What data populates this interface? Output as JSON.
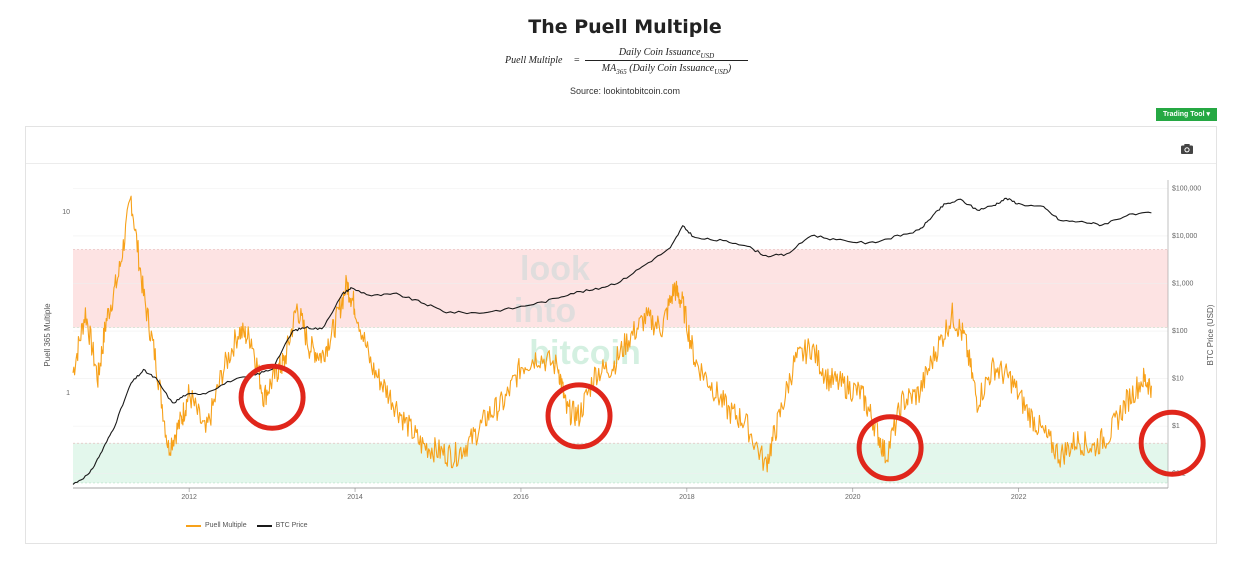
{
  "page": {
    "title": "The Puell Multiple",
    "formula": {
      "lhs": "Puell Multiple",
      "eq": "=",
      "numerator": "Daily Coin Issuance",
      "numerator_sub": "USD",
      "denominator_pre": "MA",
      "denominator_pre_sub": "365",
      "denominator": " (Daily Coin Issuance",
      "denominator_sub": "USD",
      "denominator_post": ")"
    },
    "source": "Source: lookintobitcoin.com",
    "trading_tool_label": "Trading Tool ▾"
  },
  "colors": {
    "puell": "#f7a11a",
    "btc": "#1a1a1a",
    "red_band": "#fde3e3",
    "green_band": "#e3f7ec",
    "circle": "#e0261b",
    "watermark": "#dcdcdc"
  },
  "watermark": {
    "line1": "look",
    "line2": "into",
    "line3": "bitcoin"
  },
  "icons": {
    "camera": "camera-icon"
  },
  "chart_data": {
    "type": "line",
    "xlabel": "",
    "ylabel_left": "Puell 365 Multiple",
    "ylabel_right": "BTC Price (USD)",
    "x_ticks": [
      "2012",
      "2014",
      "2016",
      "2018",
      "2020",
      "2022"
    ],
    "x_range": [
      2010.6,
      2023.8
    ],
    "y_left_scale": "log",
    "y_left_range": [
      0.3,
      15
    ],
    "y_left_ticks": [
      "10",
      "1"
    ],
    "y_right_scale": "log",
    "y_right_range": [
      0.05,
      150000
    ],
    "y_right_ticks": [
      "$100,000",
      "$10,000",
      "$1,000",
      "$100",
      "$10",
      "$1",
      "$0.1"
    ],
    "bands": [
      {
        "name": "overvalued",
        "from": 2.3,
        "to": 6.2,
        "axis": "left"
      },
      {
        "name": "undervalued",
        "from": 0.32,
        "to": 0.53,
        "axis": "left"
      }
    ],
    "legend_placement": "bottom-left",
    "series": [
      {
        "name": "Puell Multiple",
        "axis": "left",
        "x": [
          2010.6,
          2010.75,
          2010.9,
          2011.0,
          2011.15,
          2011.3,
          2011.45,
          2011.6,
          2011.75,
          2011.9,
          2012.0,
          2012.2,
          2012.4,
          2012.6,
          2012.75,
          2012.9,
          2013.05,
          2013.15,
          2013.3,
          2013.45,
          2013.6,
          2013.75,
          2013.9,
          2014.0,
          2014.2,
          2014.4,
          2014.6,
          2014.8,
          2015.0,
          2015.2,
          2015.4,
          2015.6,
          2015.8,
          2016.0,
          2016.2,
          2016.45,
          2016.55,
          2016.7,
          2016.9,
          2017.1,
          2017.3,
          2017.5,
          2017.7,
          2017.85,
          2017.95,
          2018.1,
          2018.3,
          2018.5,
          2018.7,
          2018.95,
          2019.1,
          2019.3,
          2019.5,
          2019.7,
          2019.9,
          2020.1,
          2020.25,
          2020.4,
          2020.6,
          2020.8,
          2021.0,
          2021.2,
          2021.35,
          2021.5,
          2021.7,
          2021.9,
          2022.1,
          2022.3,
          2022.5,
          2022.7,
          2022.9,
          2023.1,
          2023.3,
          2023.5,
          2023.6
        ],
        "values": [
          1.3,
          2.8,
          1.2,
          2.5,
          4.5,
          12.0,
          3.5,
          1.5,
          0.5,
          0.7,
          1.0,
          0.6,
          1.3,
          2.2,
          2.0,
          0.95,
          1.3,
          1.5,
          3.0,
          1.8,
          1.6,
          2.3,
          4.0,
          3.0,
          1.4,
          1.0,
          0.7,
          0.52,
          0.48,
          0.45,
          0.55,
          0.75,
          0.9,
          1.4,
          1.6,
          1.4,
          0.8,
          0.75,
          1.3,
          1.4,
          2.0,
          2.6,
          2.3,
          3.8,
          3.1,
          1.5,
          1.1,
          0.8,
          0.7,
          0.4,
          0.7,
          1.5,
          1.8,
          1.2,
          1.1,
          1.0,
          0.7,
          0.45,
          0.9,
          1.0,
          1.7,
          2.7,
          2.0,
          0.9,
          1.4,
          1.2,
          0.8,
          0.6,
          0.45,
          0.55,
          0.5,
          0.6,
          0.9,
          1.2,
          1.1
        ]
      },
      {
        "name": "BTC Price",
        "axis": "right",
        "x": [
          2010.6,
          2010.8,
          2010.95,
          2011.1,
          2011.3,
          2011.45,
          2011.6,
          2011.8,
          2011.95,
          2012.2,
          2012.5,
          2012.8,
          2013.0,
          2013.25,
          2013.4,
          2013.6,
          2013.85,
          2013.95,
          2014.2,
          2014.5,
          2014.8,
          2015.1,
          2015.5,
          2015.9,
          2016.3,
          2016.6,
          2016.9,
          2017.2,
          2017.5,
          2017.8,
          2017.95,
          2018.1,
          2018.4,
          2018.7,
          2018.95,
          2019.2,
          2019.5,
          2019.8,
          2020.2,
          2020.5,
          2020.8,
          2020.95,
          2021.1,
          2021.3,
          2021.5,
          2021.7,
          2021.85,
          2022.0,
          2022.3,
          2022.5,
          2022.8,
          2023.0,
          2023.3,
          2023.6
        ],
        "values": [
          0.06,
          0.1,
          0.3,
          1.0,
          8.0,
          15.0,
          10.0,
          3.0,
          4.5,
          5.0,
          9.0,
          12.0,
          16.0,
          100.0,
          120.0,
          110.0,
          600.0,
          800.0,
          550.0,
          600.0,
          400.0,
          250.0,
          240.0,
          300.0,
          420.0,
          620.0,
          750.0,
          1100.0,
          2500.0,
          5500.0,
          16000.0,
          9000.0,
          8000.0,
          6500.0,
          3800.0,
          4000.0,
          10500.0,
          8200.0,
          7000.0,
          9500.0,
          13000.0,
          25000.0,
          45000.0,
          58000.0,
          35000.0,
          44000.0,
          62000.0,
          47000.0,
          40000.0,
          21000.0,
          19500.0,
          17000.0,
          27000.0,
          30500.0
        ]
      }
    ],
    "annotations": [
      {
        "type": "circle",
        "x": 2013.0,
        "y": 0.95
      },
      {
        "type": "circle",
        "x": 2016.7,
        "y": 0.75
      },
      {
        "type": "circle",
        "x": 2020.45,
        "y": 0.5
      },
      {
        "type": "circle",
        "x": 2023.85,
        "y": 0.53
      }
    ]
  }
}
